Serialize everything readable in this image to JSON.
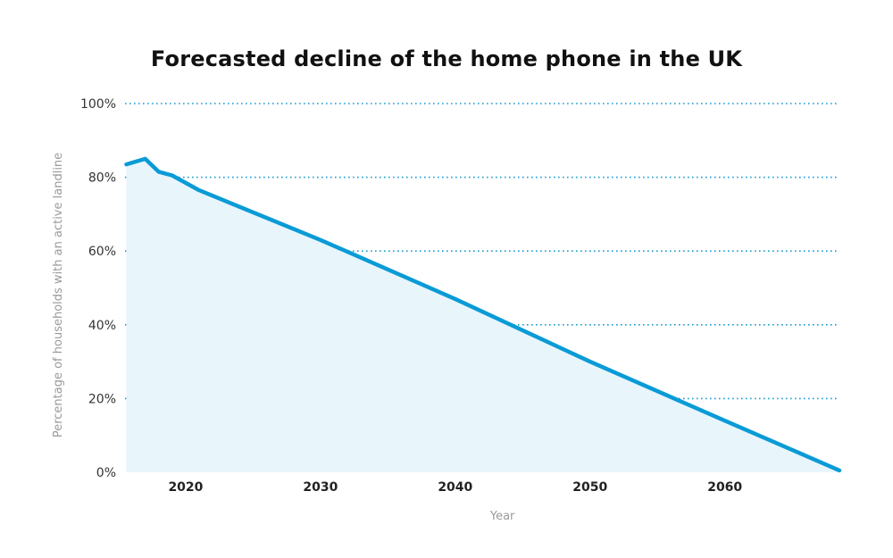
{
  "chart_data": {
    "type": "area",
    "title": "Forecasted decline of the home phone in the UK",
    "xlabel": "Year",
    "ylabel": "Percentage of households with an active landline",
    "x_ticks": [
      "2020",
      "2030",
      "2040",
      "2050",
      "2060"
    ],
    "y_ticks": [
      "0%",
      "20%",
      "40%",
      "60%",
      "80%",
      "100%"
    ],
    "xlim": [
      2015.5,
      2068.5
    ],
    "ylim": [
      0,
      100
    ],
    "grid": "horizontal dotted",
    "legend": "none",
    "series": [
      {
        "x": [
          2015.6,
          2017,
          2018,
          2019,
          2021,
          2030,
          2040,
          2050,
          2060,
          2068.5
        ],
        "values": [
          83.5,
          85,
          81.5,
          80.5,
          76.5,
          63,
          47,
          30,
          14,
          0.5
        ]
      }
    ],
    "colors": {
      "line": "#0a9bd6",
      "fill": "#e8f6fc",
      "grid": "#1a9bd3"
    }
  }
}
